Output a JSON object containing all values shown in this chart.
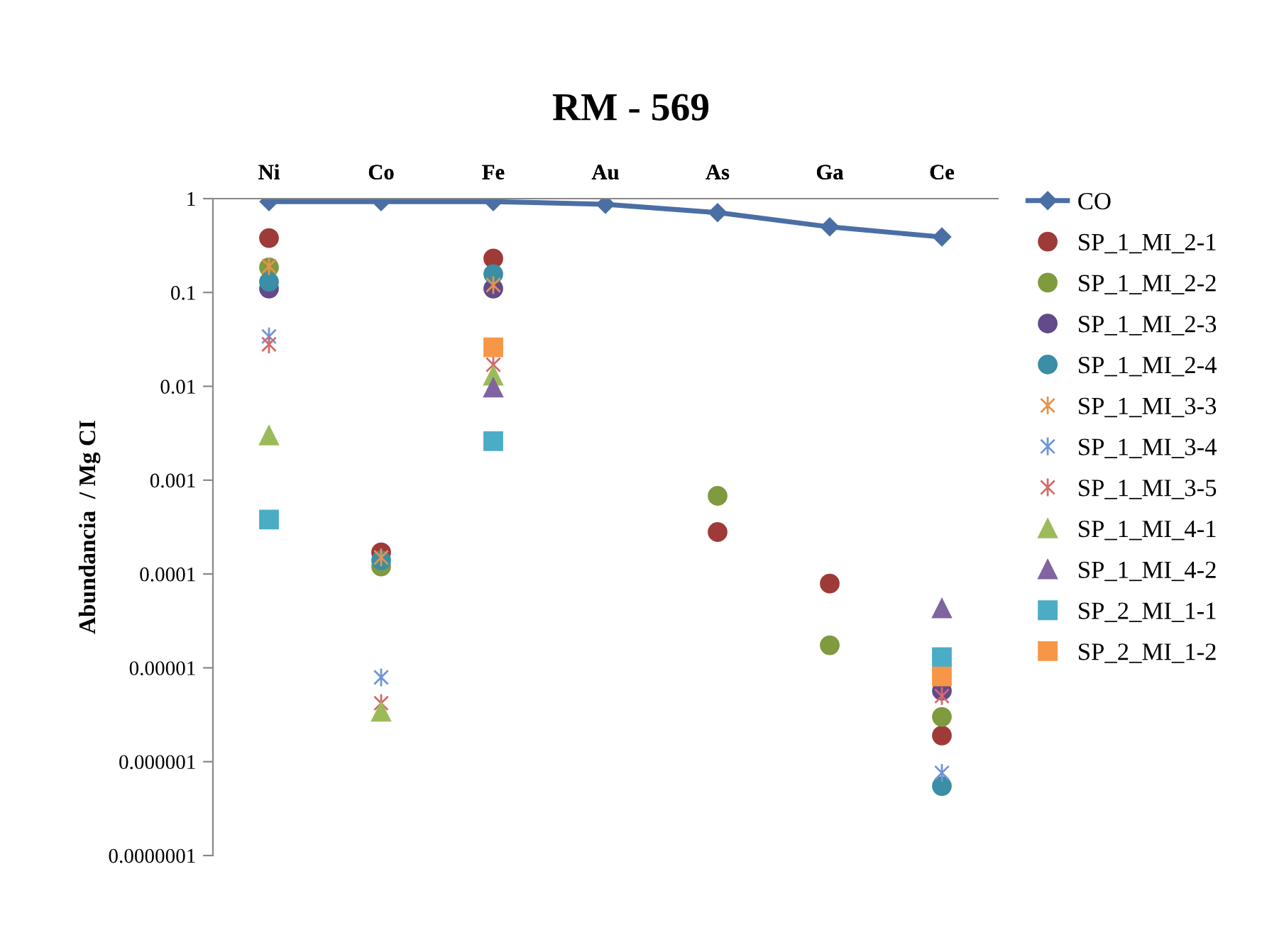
{
  "chart_data": {
    "type": "scatter",
    "title": "RM - 569",
    "ylabel": "Abundancia  / Mg CI",
    "categories": [
      "Ni",
      "Co",
      "Fe",
      "Au",
      "As",
      "Ga",
      "Ce"
    ],
    "log": "y",
    "ylim": [
      1e-07,
      1
    ],
    "yticks": [
      {
        "value": 1e-07,
        "label": "0.0000001"
      },
      {
        "value": 1e-06,
        "label": "0.000001"
      },
      {
        "value": 1e-05,
        "label": "0.00001"
      },
      {
        "value": 0.0001,
        "label": "0.0001"
      },
      {
        "value": 0.001,
        "label": "0.001"
      },
      {
        "value": 0.01,
        "label": "0.01"
      },
      {
        "value": 0.1,
        "label": "0.1"
      },
      1
    ],
    "grid": false,
    "legend": "right",
    "series": [
      {
        "name": "CO",
        "type": "line",
        "marker": "diamond",
        "color": "#4a6fa5",
        "values": [
          0.93,
          0.93,
          0.93,
          0.87,
          0.71,
          0.5,
          0.39
        ]
      },
      {
        "name": "SP_1_MI_2-1",
        "marker": "circle",
        "color": "#9e3b38",
        "values": [
          0.38,
          0.00017,
          0.23,
          null,
          0.00028,
          7.9e-05,
          1.9e-06
        ]
      },
      {
        "name": "SP_1_MI_2-2",
        "marker": "circle",
        "color": "#7f9a3f",
        "values": [
          0.185,
          0.00012,
          null,
          null,
          0.00068,
          1.74e-05,
          3e-06
        ]
      },
      {
        "name": "SP_1_MI_2-3",
        "marker": "circle",
        "color": "#634a8a",
        "values": [
          0.11,
          null,
          0.11,
          null,
          null,
          null,
          5.7e-06
        ]
      },
      {
        "name": "SP_1_MI_2-4",
        "marker": "circle",
        "color": "#3a8ea5",
        "values": [
          0.13,
          0.00014,
          0.157,
          null,
          null,
          null,
          5.5e-07
        ]
      },
      {
        "name": "SP_1_MI_3-3",
        "marker": "cross",
        "color": "#e8924a",
        "values": [
          0.19,
          0.00015,
          0.12,
          null,
          null,
          null,
          null
        ]
      },
      {
        "name": "SP_1_MI_3-4",
        "marker": "cross",
        "color": "#6f95d6",
        "values": [
          0.034,
          7.9e-06,
          null,
          null,
          null,
          null,
          7.6e-07
        ]
      },
      {
        "name": "SP_1_MI_3-5",
        "marker": "cross",
        "color": "#d46a6a",
        "values": [
          0.028,
          4.2e-06,
          0.017,
          null,
          null,
          null,
          5e-06
        ]
      },
      {
        "name": "SP_1_MI_4-1",
        "marker": "triangle",
        "color": "#9bbb59",
        "values": [
          0.003,
          3.4e-06,
          0.013,
          null,
          null,
          null,
          null
        ]
      },
      {
        "name": "SP_1_MI_4-2",
        "marker": "triangle",
        "color": "#8064a2",
        "values": [
          null,
          null,
          0.0097,
          null,
          null,
          null,
          4.3e-05
        ]
      },
      {
        "name": "SP_2_MI_1-1",
        "marker": "square",
        "color": "#4bacc6",
        "values": [
          0.00038,
          null,
          0.0026,
          null,
          null,
          null,
          1.3e-05
        ]
      },
      {
        "name": "SP_2_MI_1-2",
        "marker": "square",
        "color": "#f79646",
        "values": [
          null,
          null,
          0.026,
          null,
          null,
          null,
          8.1e-06
        ]
      }
    ]
  }
}
